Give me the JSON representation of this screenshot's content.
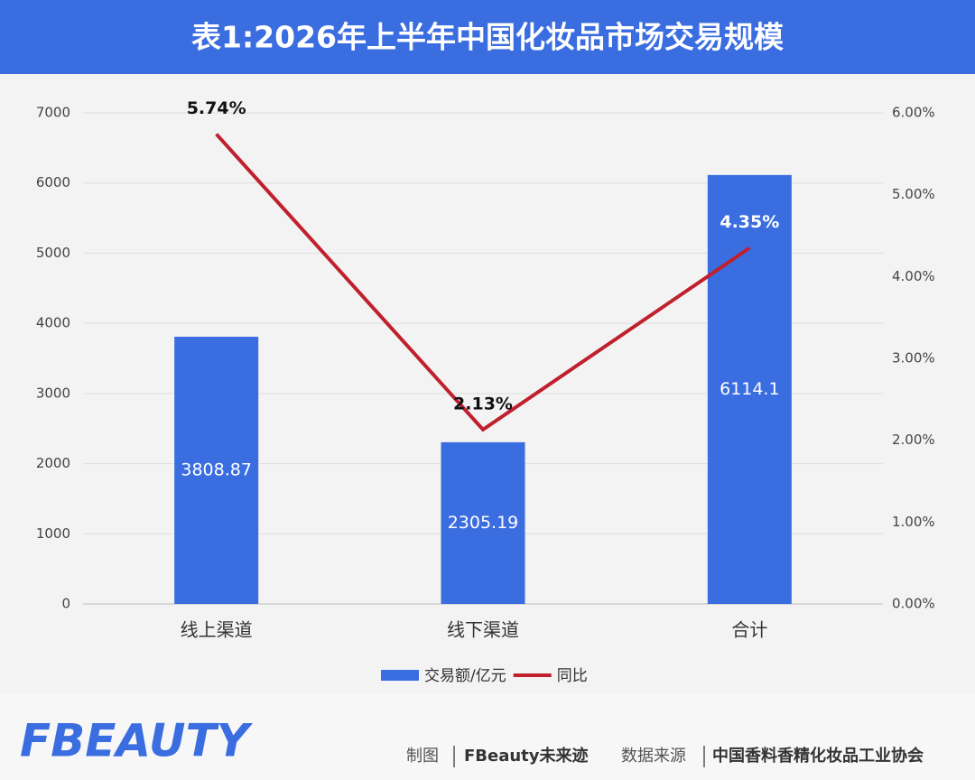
{
  "chart_data": {
    "type": "bar_line",
    "title": "表1:2026年上半年中国化妆品市场交易规模",
    "categories": [
      "线上渠道",
      "线下渠道",
      "合计"
    ],
    "series": [
      {
        "name": "交易额/亿元",
        "type": "bar",
        "color": "#3a6de0",
        "values": [
          3808.87,
          2305.19,
          6114.1
        ]
      },
      {
        "name": "同比",
        "type": "line",
        "axis": "y2",
        "color": "#c0202e",
        "values": [
          5.74,
          2.13,
          4.35
        ],
        "value_labels": [
          "5.74%",
          "2.13%",
          "4.35%"
        ]
      }
    ],
    "ylim": [
      0,
      7000
    ],
    "yticks": [
      0,
      1000,
      2000,
      3000,
      4000,
      5000,
      6000,
      7000
    ],
    "y2lim": [
      0,
      6
    ],
    "y2ticks": [
      {
        "value": 0,
        "label": "0.00%"
      },
      {
        "value": 1,
        "label": "1.00%"
      },
      {
        "value": 2,
        "label": "2.00%"
      },
      {
        "value": 3,
        "label": "3.00%"
      },
      {
        "value": 4,
        "label": "4.00%"
      },
      {
        "value": 5,
        "label": "5.00%"
      },
      {
        "value": 6,
        "label": "6.00%"
      }
    ],
    "grid": true,
    "legend": "bottom"
  },
  "footer": {
    "logo": "FBEAUTY",
    "made_by_label": "制图",
    "made_by": "FBeauty未来迹",
    "source_label": "数据来源",
    "source": "中国香料香精化妆品工业协会"
  }
}
